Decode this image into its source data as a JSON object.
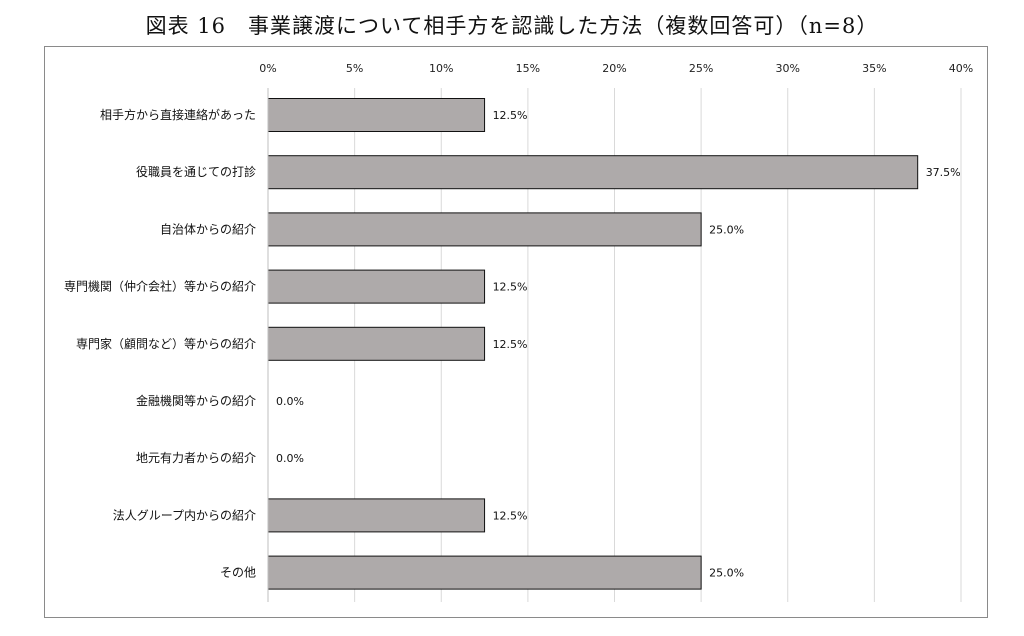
{
  "chart_data": {
    "type": "bar",
    "orientation": "horizontal",
    "title": "図表 16　事業譲渡について相手方を認識した方法（複数回答可）（n=8）",
    "xlabel": "",
    "ylabel": "",
    "xlim": [
      0,
      40
    ],
    "x_ticks": [
      "0%",
      "5%",
      "10%",
      "15%",
      "20%",
      "25%",
      "30%",
      "35%",
      "40%"
    ],
    "x_tick_values": [
      0,
      5,
      10,
      15,
      20,
      25,
      30,
      35,
      40
    ],
    "grid": true,
    "legend": "none",
    "categories": [
      "相手方から直接連絡があった",
      "役職員を通じての打診",
      "自治体からの紹介",
      "専門機関（仲介会社）等からの紹介",
      "専門家（顧問など）等からの紹介",
      "金融機関等からの紹介",
      "地元有力者からの紹介",
      "法人グループ内からの紹介",
      "その他"
    ],
    "values": [
      12.5,
      37.5,
      25.0,
      12.5,
      12.5,
      0.0,
      0.0,
      12.5,
      25.0
    ],
    "data_labels": [
      "12.5%",
      "37.5%",
      "25.0%",
      "12.5%",
      "12.5%",
      "0.0%",
      "0.0%",
      "12.5%",
      "25.0%"
    ],
    "colors": {
      "bar_fill": "#aeaaaa",
      "bar_stroke": "#111111",
      "grid": "#d9d9d9"
    }
  }
}
